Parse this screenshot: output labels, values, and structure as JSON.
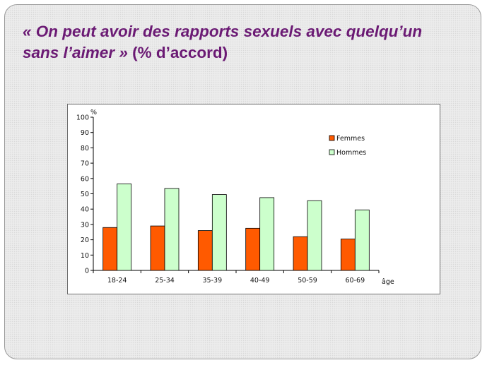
{
  "slide": {
    "title_line1": "« On  peut avoir des rapports sexuels avec quelqu’un",
    "title_line2_italic": "sans l’aimer » ",
    "title_line2_plain": "(% d’accord)",
    "title_color": "#6b1a74"
  },
  "chart_data": {
    "type": "bar",
    "title": "",
    "ylabel": "%",
    "xlabel": "âge",
    "ylim": [
      0,
      100
    ],
    "yticks": [
      0,
      10,
      20,
      30,
      40,
      50,
      60,
      70,
      80,
      90,
      100
    ],
    "categories": [
      "18-24",
      "25-34",
      "35-39",
      "40-49",
      "50-59",
      "60-69"
    ],
    "series": [
      {
        "name": "Femmes",
        "color": "#ff5a00",
        "values": [
          28,
          29,
          26,
          27.5,
          22,
          20.5
        ]
      },
      {
        "name": "Hommes",
        "color": "#ccffcc",
        "values": [
          56.5,
          53.5,
          49.5,
          47.5,
          45.5,
          39.5
        ]
      }
    ],
    "legend_position": "top-right",
    "grid": false
  }
}
